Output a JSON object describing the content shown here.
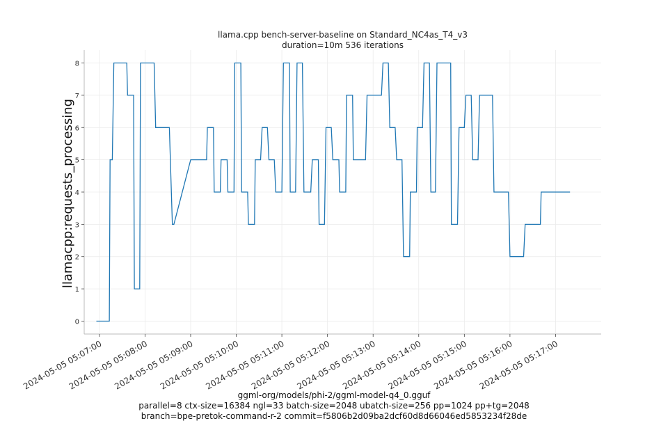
{
  "chart_data": {
    "type": "line",
    "title": "llama.cpp bench-server-baseline on Standard_NC4as_T4_v3",
    "subtitle": "duration=10m 536 iterations",
    "ylabel": "llamacpp:requests_processing",
    "xlabel": "",
    "footer": [
      "ggml-org/models/phi-2/ggml-model-q4_0.gguf",
      "parallel=8 ctx-size=16384 ngl=33 batch-size=2048 ubatch-size=256 pp=1024 pp+tg=2048",
      "branch=bpe-pretok-command-r-2 commit=f5806b2d09ba2dcf60d8d66046ed5853234f28de"
    ],
    "xlim": [
      "2024-05-05 05:06:40",
      "2024-05-05 05:18:00"
    ],
    "ylim": [
      -0.4,
      8.4
    ],
    "x_ticks": [
      "2024-05-05 05:07:00",
      "2024-05-05 05:08:00",
      "2024-05-05 05:09:00",
      "2024-05-05 05:10:00",
      "2024-05-05 05:11:00",
      "2024-05-05 05:12:00",
      "2024-05-05 05:13:00",
      "2024-05-05 05:14:00",
      "2024-05-05 05:15:00",
      "2024-05-05 05:16:00",
      "2024-05-05 05:17:00"
    ],
    "y_ticks": [
      0,
      1,
      2,
      3,
      4,
      5,
      6,
      7,
      8
    ],
    "grid": true,
    "color": "#1f77b4",
    "series": [
      {
        "name": "",
        "x": [
          "05:06:56",
          "05:07:13",
          "05:07:14",
          "05:07:15",
          "05:07:17",
          "05:07:19",
          "05:07:36",
          "05:07:37",
          "05:07:45",
          "05:07:46",
          "05:07:53",
          "05:07:54",
          "05:08:12",
          "05:08:14",
          "05:08:31",
          "05:08:32",
          "05:08:36",
          "05:08:38",
          "05:09:00",
          "05:09:21",
          "05:09:22",
          "05:09:30",
          "05:09:31",
          "05:09:39",
          "05:09:40",
          "05:09:48",
          "05:09:49",
          "05:09:57",
          "05:09:58",
          "05:10:06",
          "05:10:07",
          "05:10:15",
          "05:10:16",
          "05:10:24",
          "05:10:25",
          "05:10:32",
          "05:10:34",
          "05:10:41",
          "05:10:43",
          "05:10:50",
          "05:10:52",
          "05:11:00",
          "05:11:02",
          "05:11:10",
          "05:11:11",
          "05:11:18",
          "05:11:20",
          "05:11:27",
          "05:11:29",
          "05:11:38",
          "05:11:40",
          "05:11:48",
          "05:11:49",
          "05:11:56",
          "05:11:58",
          "05:12:05",
          "05:12:07",
          "05:12:15",
          "05:12:16",
          "05:12:24",
          "05:12:25",
          "05:12:33",
          "05:12:34",
          "05:12:42",
          "05:12:43",
          "05:12:50",
          "05:12:52",
          "05:13:11",
          "05:13:13",
          "05:13:20",
          "05:13:22",
          "05:13:29",
          "05:13:31",
          "05:13:38",
          "05:13:40",
          "05:13:48",
          "05:13:49",
          "05:13:57",
          "05:13:58",
          "05:14:05",
          "05:14:07",
          "05:14:14",
          "05:14:16",
          "05:14:22",
          "05:14:24",
          "05:14:42",
          "05:14:43",
          "05:14:51",
          "05:14:53",
          "05:15:00",
          "05:15:02",
          "05:15:09",
          "05:15:11",
          "05:15:18",
          "05:15:20",
          "05:15:37",
          "05:15:39",
          "05:15:58",
          "05:16:00",
          "05:16:18",
          "05:16:20",
          "05:16:40",
          "05:16:41",
          "05:16:48",
          "05:16:50",
          "05:17:11",
          "05:17:12",
          "05:17:19"
        ],
        "y": [
          0,
          0,
          5,
          5,
          5,
          8,
          8,
          7,
          7,
          1,
          1,
          8,
          8,
          6,
          6,
          6,
          3,
          3,
          5,
          5,
          6,
          6,
          4,
          4,
          5,
          5,
          4,
          4,
          8,
          8,
          4,
          4,
          3,
          3,
          5,
          5,
          6,
          6,
          5,
          5,
          4,
          4,
          8,
          8,
          4,
          4,
          8,
          8,
          4,
          4,
          5,
          5,
          3,
          3,
          6,
          6,
          5,
          5,
          4,
          4,
          7,
          7,
          5,
          5,
          5,
          5,
          7,
          7,
          8,
          8,
          6,
          6,
          5,
          5,
          2,
          2,
          4,
          4,
          6,
          6,
          8,
          8,
          4,
          4,
          8,
          8,
          3,
          3,
          6,
          6,
          7,
          7,
          5,
          5,
          7,
          7,
          4,
          4,
          2,
          2,
          3,
          3,
          4,
          4,
          4,
          4,
          4,
          4
        ]
      }
    ]
  }
}
